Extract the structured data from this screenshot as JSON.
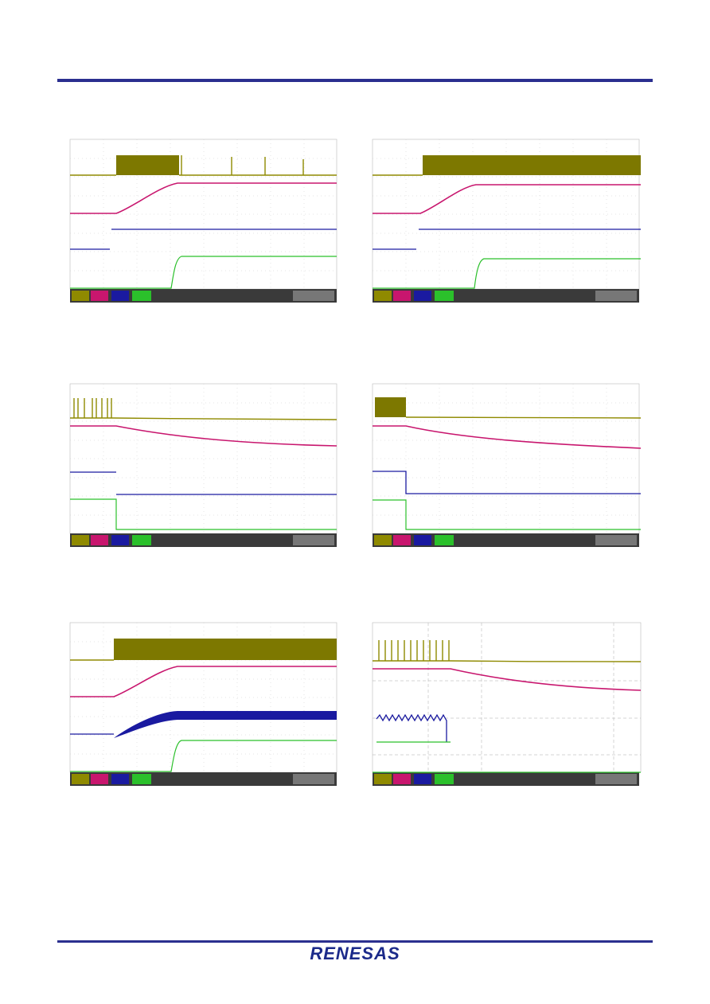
{
  "footer": {
    "logo": "RENESAS"
  }
}
